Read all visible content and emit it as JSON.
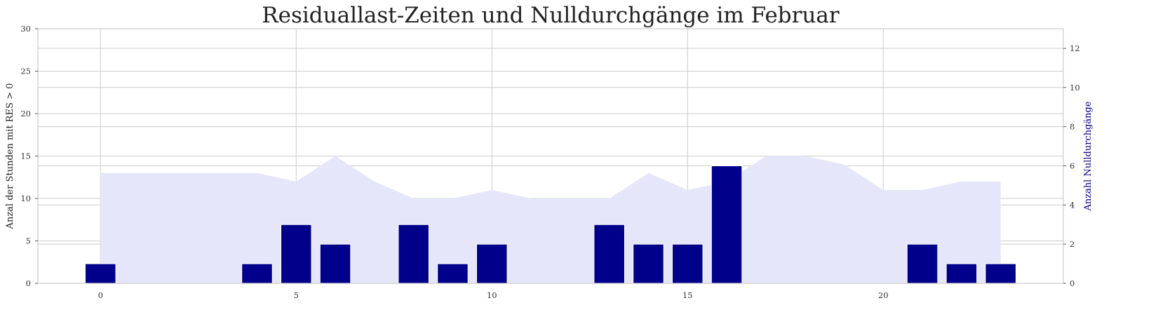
{
  "chart_data": {
    "type": "bar",
    "title": "Residuallast-Zeiten und Nulldurchgänge im Februar",
    "xlabel": "",
    "ylabel": "Anzal der Stunden mit RES > 0",
    "ylabel_right": "Anzahl Nulldurchgänge",
    "xlim": [
      -1.6,
      24.6
    ],
    "xticks": [
      0,
      5,
      10,
      15,
      20
    ],
    "ylim_left": [
      0,
      30
    ],
    "yticks_left": [
      0,
      5,
      10,
      15,
      20,
      25,
      30
    ],
    "ylim_right": [
      0,
      13
    ],
    "yticks_right": [
      0,
      2,
      4,
      6,
      8,
      10,
      12
    ],
    "grid": true,
    "series": [
      {
        "axis": "left",
        "type": "area",
        "color": "#e6e6fa",
        "x": [
          0,
          1,
          2,
          3,
          4,
          5,
          6,
          7,
          8,
          9,
          10,
          11,
          12,
          13,
          14,
          15,
          16,
          17,
          18,
          19,
          20,
          21,
          22,
          23
        ],
        "values": [
          13,
          13,
          13,
          13,
          13,
          12,
          15,
          12,
          10,
          10,
          11,
          10,
          10,
          10,
          13,
          11,
          12,
          15,
          15,
          14,
          11,
          11,
          12,
          12
        ]
      },
      {
        "axis": "right",
        "type": "bar",
        "color": "#00008b",
        "x": [
          0,
          4,
          5,
          6,
          8,
          9,
          10,
          13,
          14,
          15,
          16,
          21,
          22,
          23
        ],
        "values": [
          1,
          1,
          3,
          2,
          3,
          1,
          2,
          3,
          2,
          2,
          6,
          2,
          1,
          1
        ]
      }
    ]
  }
}
